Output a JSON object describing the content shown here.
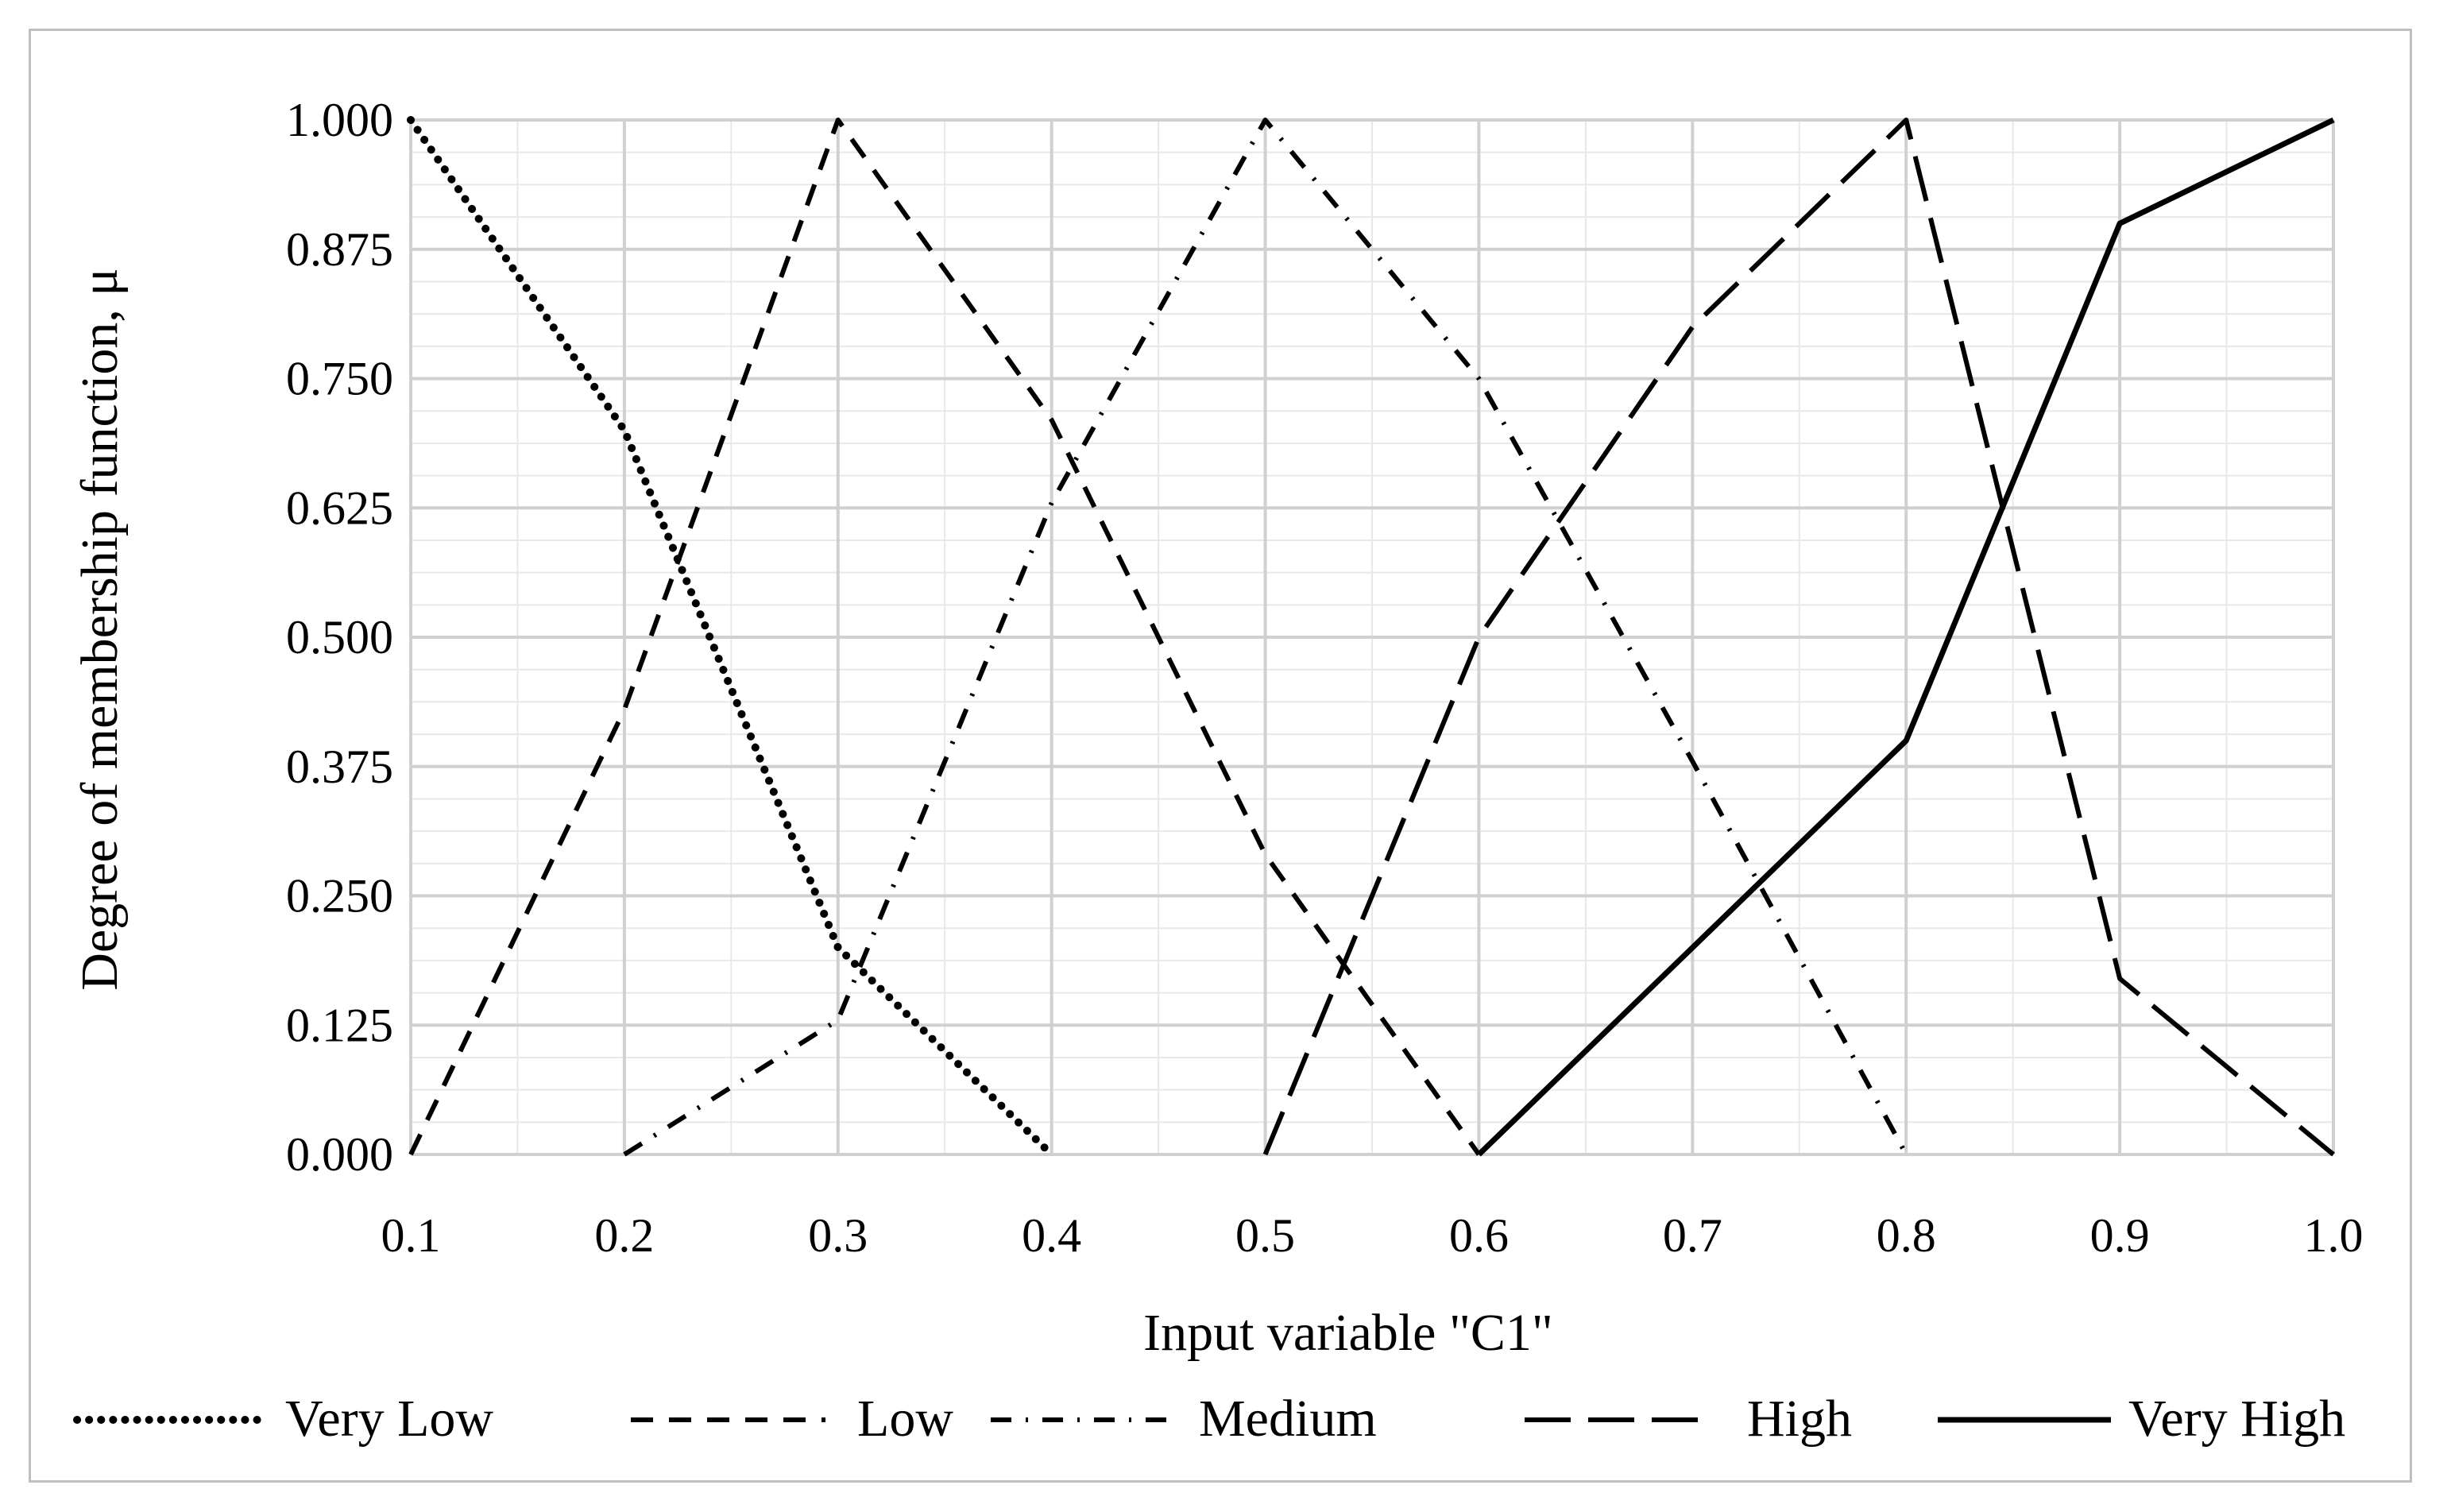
{
  "chart_data": {
    "type": "line",
    "title": "",
    "xlabel": "Input variable \"C1\"",
    "ylabel": "Degree of membership function, μ",
    "xlim": [
      0.1,
      1.0
    ],
    "ylim": [
      0,
      1
    ],
    "x_ticks": [
      0.1,
      0.2,
      0.3,
      0.4,
      0.5,
      0.6,
      0.7,
      0.8,
      0.9,
      1.0
    ],
    "x_tick_labels": [
      "0.1",
      "0.2",
      "0.3",
      "0.4",
      "0.5",
      "0.6",
      "0.7",
      "0.8",
      "0.9",
      "1.0"
    ],
    "y_ticks": [
      0,
      0.125,
      0.25,
      0.375,
      0.5,
      0.625,
      0.75,
      0.875,
      1
    ],
    "y_tick_labels": [
      "0.000",
      "0.125",
      "0.250",
      "0.375",
      "0.500",
      "0.625",
      "0.750",
      "0.875",
      "1.000"
    ],
    "grid": true,
    "legend_position": "bottom",
    "series": [
      {
        "name": "Very Low",
        "style": "dotted",
        "x": [
          0.1,
          0.2,
          0.3,
          0.4
        ],
        "y": [
          1.0,
          0.7,
          0.2,
          0.0
        ]
      },
      {
        "name": "Low",
        "style": "dashed",
        "x": [
          0.1,
          0.2,
          0.3,
          0.4,
          0.5,
          0.6
        ],
        "y": [
          0.0,
          0.43,
          1.0,
          0.71,
          0.29,
          0.0
        ]
      },
      {
        "name": "Medium",
        "style": "dash-dot",
        "x": [
          0.2,
          0.3,
          0.4,
          0.5,
          0.6,
          0.7,
          0.8
        ],
        "y": [
          0.0,
          0.13,
          0.63,
          1.0,
          0.75,
          0.38,
          0.0
        ]
      },
      {
        "name": "High",
        "style": "long-dash",
        "x": [
          0.5,
          0.6,
          0.7,
          0.8,
          0.9,
          1.0
        ],
        "y": [
          0.0,
          0.5,
          0.8,
          1.0,
          0.17,
          0.0
        ]
      },
      {
        "name": "Very High",
        "style": "solid",
        "x": [
          0.6,
          0.7,
          0.8,
          0.9,
          1.0
        ],
        "y": [
          0.0,
          0.2,
          0.4,
          0.9,
          1.0
        ]
      }
    ],
    "colors": {
      "grid_major": "#d0d0d0",
      "grid_minor": "#e8e8e8",
      "line": "#000000",
      "frame": "#bfbfbf"
    }
  }
}
